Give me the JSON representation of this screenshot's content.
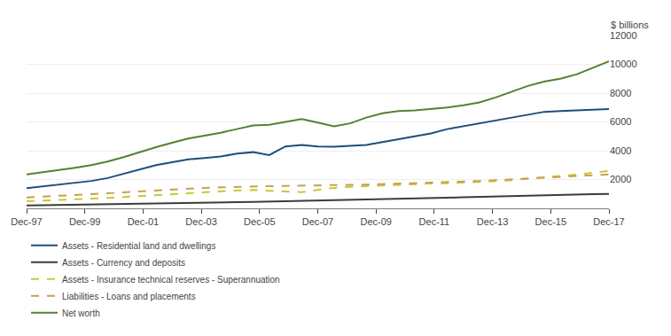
{
  "chart_data": {
    "type": "line",
    "ylabel": "$ billions",
    "xlim": [
      0,
      1
    ],
    "xticks": [
      {
        "value": 0,
        "label": "Dec-97"
      },
      {
        "value": 0.1,
        "label": "Dec-99"
      },
      {
        "value": 0.2,
        "label": "Dec-01"
      },
      {
        "value": 0.3,
        "label": "Dec-03"
      },
      {
        "value": 0.4,
        "label": "Dec-05"
      },
      {
        "value": 0.5,
        "label": "Dec-07"
      },
      {
        "value": 0.6,
        "label": "Dec-09"
      },
      {
        "value": 0.7,
        "label": "Dec-11"
      },
      {
        "value": 0.8,
        "label": "Dec-13"
      },
      {
        "value": 0.9,
        "label": "Dec-15"
      },
      {
        "value": 1,
        "label": "Dec-17"
      }
    ],
    "ylim": [
      0,
      12000
    ],
    "yticks": [
      2000,
      4000,
      6000,
      8000,
      10000,
      12000
    ],
    "grid": true,
    "legend": "bottom",
    "series": [
      {
        "name": "Assets - Residential land and dwellings",
        "color": "#1f4e79",
        "line_style": "solid",
        "values": [
          1400,
          1520,
          1640,
          1750,
          1900,
          2100,
          2400,
          2700,
          3000,
          3200,
          3400,
          3500,
          3600,
          3800,
          3900,
          3700,
          4300,
          4400,
          4300,
          4280,
          4350,
          4400,
          4600,
          4800,
          5000,
          5200,
          5500,
          5700,
          5900,
          6100,
          6300,
          6500,
          6700,
          6750,
          6800,
          6850,
          6900
        ]
      },
      {
        "name": "Assets - Currency and deposits",
        "color": "#3c3c3c",
        "line_style": "solid",
        "values": [
          200,
          215,
          225,
          240,
          255,
          270,
          285,
          300,
          320,
          340,
          360,
          380,
          400,
          425,
          450,
          470,
          495,
          515,
          540,
          560,
          580,
          600,
          625,
          650,
          680,
          710,
          740,
          770,
          800,
          840,
          875,
          910,
          940,
          960,
          975,
          990,
          1000
        ]
      },
      {
        "name": "Assets - Insurance technical reserves - Superannuation",
        "color": "#c8c832",
        "line_style": "dashed",
        "values": [
          490,
          530,
          570,
          610,
          660,
          720,
          790,
          860,
          930,
          1000,
          1060,
          1120,
          1180,
          1240,
          1270,
          1230,
          1180,
          1120,
          1280,
          1420,
          1500,
          1550,
          1590,
          1640,
          1700,
          1720,
          1740,
          1780,
          1830,
          1890,
          1960,
          2050,
          2130,
          2230,
          2340,
          2470,
          2600
        ]
      },
      {
        "name": "Liabilities - Loans and placements",
        "color": "#c8a050",
        "line_style": "dashed",
        "values": [
          760,
          810,
          860,
          910,
          970,
          1040,
          1110,
          1180,
          1250,
          1310,
          1370,
          1420,
          1460,
          1500,
          1530,
          1540,
          1560,
          1570,
          1590,
          1610,
          1630,
          1650,
          1680,
          1710,
          1740,
          1770,
          1810,
          1850,
          1900,
          1960,
          2010,
          2070,
          2130,
          2190,
          2250,
          2300,
          2360
        ]
      },
      {
        "name": "Net worth",
        "color": "#538135",
        "line_style": "solid",
        "values": [
          2350,
          2500,
          2650,
          2820,
          3000,
          3250,
          3550,
          3900,
          4250,
          4550,
          4850,
          5050,
          5250,
          5500,
          5750,
          5800,
          6000,
          6200,
          5950,
          5700,
          5900,
          6300,
          6600,
          6750,
          6800,
          6900,
          7000,
          7150,
          7350,
          7700,
          8100,
          8500,
          8800,
          9000,
          9300,
          9750,
          10200
        ]
      }
    ]
  }
}
